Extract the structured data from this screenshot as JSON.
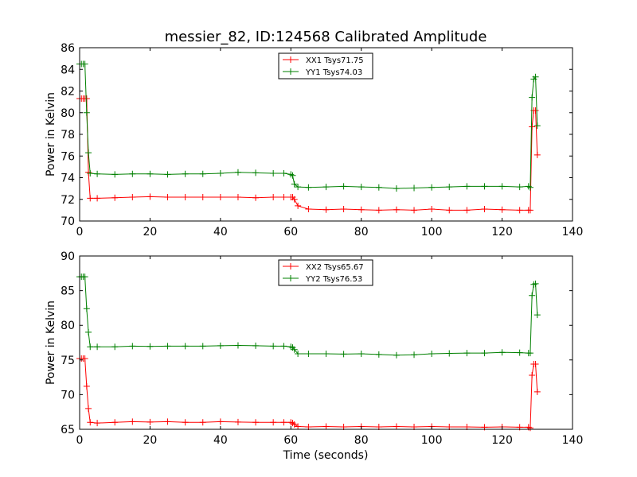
{
  "chart_data": [
    {
      "type": "line",
      "title": "messier_82, ID:124568 Calibrated Amplitude",
      "xlabel": "",
      "ylabel": "Power in Kelvin",
      "xlim": [
        0,
        140
      ],
      "ylim": [
        70,
        86
      ],
      "xticks": [
        "0",
        "20",
        "40",
        "60",
        "80",
        "100",
        "120",
        "140"
      ],
      "yticks": [
        "70",
        "72",
        "74",
        "76",
        "78",
        "80",
        "82",
        "84",
        "86"
      ],
      "grid": false,
      "legend": "top-center",
      "series": [
        {
          "name": "XX1 Tsys71.75",
          "color": "#ff0000",
          "x": [
            0,
            0.5,
            1,
            1.5,
            2,
            2.5,
            3,
            5,
            10,
            15,
            20,
            25,
            30,
            35,
            40,
            45,
            50,
            55,
            58,
            60,
            60.5,
            61,
            62,
            65,
            70,
            75,
            80,
            85,
            90,
            95,
            100,
            105,
            110,
            115,
            120,
            125,
            127.5,
            128,
            128.5,
            129,
            129.5,
            130
          ],
          "values": [
            81.3,
            81.3,
            81.3,
            81.3,
            81.3,
            74.5,
            72.1,
            72.1,
            72.15,
            72.2,
            72.25,
            72.2,
            72.2,
            72.2,
            72.2,
            72.2,
            72.15,
            72.2,
            72.2,
            72.2,
            72.2,
            72.0,
            71.4,
            71.1,
            71.05,
            71.1,
            71.05,
            71.0,
            71.05,
            71.0,
            71.1,
            71.0,
            71.0,
            71.1,
            71.05,
            71.0,
            71.0,
            71.0,
            78.7,
            80.2,
            80.2,
            76.1
          ]
        },
        {
          "name": "YY1 Tsys74.03",
          "color": "#008000",
          "x": [
            0,
            0.5,
            1,
            1.5,
            2,
            2.5,
            3,
            5,
            10,
            15,
            20,
            25,
            30,
            35,
            40,
            45,
            50,
            55,
            58,
            60,
            60.5,
            61,
            62,
            65,
            70,
            75,
            80,
            85,
            90,
            95,
            100,
            105,
            110,
            115,
            120,
            125,
            127.5,
            128,
            128.5,
            129,
            129.5,
            130
          ],
          "values": [
            84.5,
            84.5,
            84.5,
            84.5,
            80.0,
            76.3,
            74.4,
            74.35,
            74.3,
            74.35,
            74.35,
            74.3,
            74.35,
            74.35,
            74.4,
            74.5,
            74.45,
            74.4,
            74.4,
            74.3,
            74.2,
            73.4,
            73.15,
            73.1,
            73.15,
            73.2,
            73.15,
            73.1,
            73.0,
            73.05,
            73.1,
            73.15,
            73.2,
            73.2,
            73.2,
            73.15,
            73.2,
            73.1,
            81.4,
            83.1,
            83.3,
            78.8
          ]
        }
      ]
    },
    {
      "type": "line",
      "title": "",
      "xlabel": "Time (seconds)",
      "ylabel": "Power in Kelvin",
      "xlim": [
        0,
        140
      ],
      "ylim": [
        65,
        90
      ],
      "xticks": [
        "0",
        "20",
        "40",
        "60",
        "80",
        "100",
        "120",
        "140"
      ],
      "yticks": [
        "65",
        "70",
        "75",
        "80",
        "85",
        "90"
      ],
      "grid": false,
      "legend": "top-center",
      "series": [
        {
          "name": "XX2 Tsys65.67",
          "color": "#ff0000",
          "x": [
            0,
            0.5,
            1,
            1.5,
            2,
            2.5,
            3,
            5,
            10,
            15,
            20,
            25,
            30,
            35,
            40,
            45,
            50,
            55,
            58,
            60,
            60.5,
            61,
            62,
            65,
            70,
            75,
            80,
            85,
            90,
            95,
            100,
            105,
            110,
            115,
            120,
            125,
            127.5,
            128,
            128.5,
            129,
            129.5,
            130
          ],
          "values": [
            75.2,
            75.2,
            75.2,
            75.2,
            71.2,
            68.0,
            66.0,
            65.9,
            66.0,
            66.1,
            66.05,
            66.1,
            66.0,
            66.0,
            66.1,
            66.05,
            66.0,
            66.0,
            66.0,
            66.0,
            65.9,
            65.7,
            65.4,
            65.35,
            65.4,
            65.35,
            65.4,
            65.35,
            65.4,
            65.35,
            65.4,
            65.35,
            65.35,
            65.3,
            65.35,
            65.3,
            65.3,
            65.2,
            72.8,
            74.4,
            74.4,
            70.4
          ]
        },
        {
          "name": "YY2 Tsys76.53",
          "color": "#008000",
          "x": [
            0,
            0.5,
            1,
            1.5,
            2,
            2.5,
            3,
            5,
            10,
            15,
            20,
            25,
            30,
            35,
            40,
            45,
            50,
            55,
            58,
            60,
            60.5,
            61,
            62,
            65,
            70,
            75,
            80,
            85,
            90,
            95,
            100,
            105,
            110,
            115,
            120,
            125,
            127.5,
            128,
            128.5,
            129,
            129.5,
            130
          ],
          "values": [
            87.0,
            87.0,
            87.0,
            87.0,
            82.4,
            79.0,
            76.9,
            76.9,
            76.9,
            77.0,
            76.95,
            77.0,
            77.0,
            77.0,
            77.05,
            77.1,
            77.05,
            77.0,
            77.0,
            76.9,
            76.8,
            76.5,
            75.9,
            75.9,
            75.9,
            75.85,
            75.9,
            75.8,
            75.7,
            75.75,
            75.9,
            75.95,
            76.0,
            76.0,
            76.1,
            76.05,
            76.0,
            76.0,
            84.3,
            85.9,
            86.0,
            81.5
          ]
        }
      ]
    }
  ]
}
